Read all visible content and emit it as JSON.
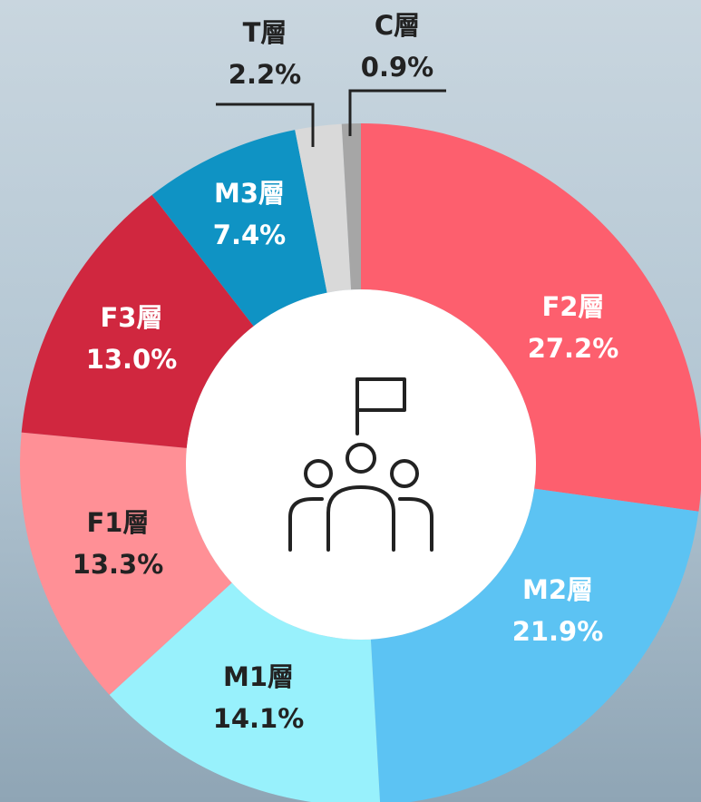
{
  "chart_data": {
    "type": "donut",
    "categories": [
      "F2層",
      "M2層",
      "M1層",
      "F1層",
      "F3層",
      "M3層",
      "T層",
      "C層"
    ],
    "values": [
      27.2,
      21.9,
      14.1,
      13.3,
      13.0,
      7.4,
      2.2,
      0.9
    ],
    "value_labels": [
      "27.2%",
      "21.9%",
      "14.1%",
      "13.3%",
      "13.0%",
      "7.4%",
      "2.2%",
      "0.9%"
    ],
    "colors": [
      "#fd5f6e",
      "#5cc3f3",
      "#98f1fc",
      "#ff9096",
      "#d0273f",
      "#0f93c4",
      "#d9d9d9",
      "#a6a6a6"
    ]
  }
}
